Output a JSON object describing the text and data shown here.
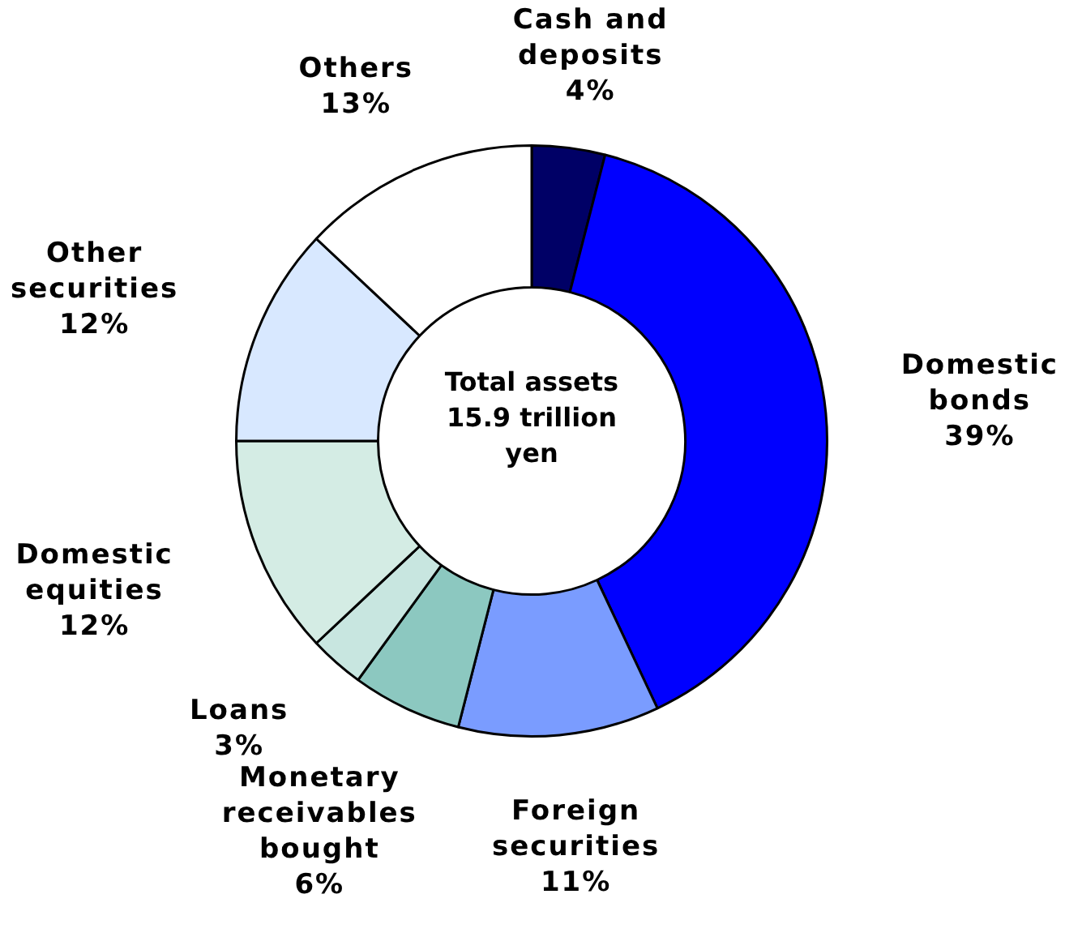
{
  "chart_data": {
    "type": "donut",
    "categories": [
      "Cash and deposits",
      "Domestic bonds",
      "Foreign securities",
      "Monetary receivables bought",
      "Loans",
      "Domestic equities",
      "Other securities",
      "Others"
    ],
    "values": [
      4,
      39,
      11,
      6,
      3,
      12,
      12,
      13
    ],
    "colors": [
      "#000066",
      "#0000ff",
      "#7a9cff",
      "#8cc8c0",
      "#c8e6e0",
      "#d4ece4",
      "#d8e8ff",
      "#ffffff"
    ],
    "annotations": [
      "Total assets 15.9 trillion yen"
    ],
    "value_labels": [
      "4%",
      "39%",
      "11%",
      "6%",
      "3%",
      "12%",
      "12%",
      "13%"
    ],
    "legend": false
  }
}
